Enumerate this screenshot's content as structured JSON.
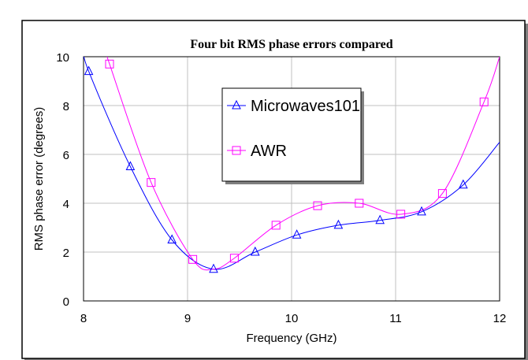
{
  "chart_data": {
    "type": "line",
    "title": "Four bit RMS phase errors compared",
    "xlabel": "Frequency (GHz)",
    "ylabel": "RMS phase error (degrees)",
    "xlim": [
      8,
      12
    ],
    "ylim": [
      0,
      10
    ],
    "xticks": [
      "8",
      "9",
      "10",
      "11",
      "12"
    ],
    "yticks": [
      "0",
      "2",
      "4",
      "6",
      "8",
      "10"
    ],
    "grid": true,
    "legend": "center",
    "series": [
      {
        "name": "Microwaves101",
        "color": "#0000ff",
        "marker": "triangle",
        "x": [
          8.05,
          8.45,
          8.85,
          9.25,
          9.65,
          10.05,
          10.45,
          10.85,
          11.25,
          11.65
        ],
        "y": [
          9.4,
          5.5,
          2.5,
          1.3,
          2.0,
          2.7,
          3.1,
          3.3,
          3.65,
          4.75
        ],
        "curve_x": [
          8.0,
          8.05,
          8.45,
          8.85,
          9.25,
          9.65,
          10.05,
          10.45,
          10.85,
          11.25,
          11.65,
          12.0
        ],
        "curve_y": [
          10.3,
          9.4,
          5.5,
          2.5,
          1.3,
          2.0,
          2.7,
          3.1,
          3.3,
          3.65,
          4.75,
          6.5
        ]
      },
      {
        "name": "AWR",
        "color": "#ff00ff",
        "marker": "square",
        "x": [
          8.25,
          8.65,
          9.05,
          9.45,
          9.85,
          10.25,
          10.65,
          11.05,
          11.45,
          11.85
        ],
        "y": [
          9.7,
          4.85,
          1.7,
          1.75,
          3.1,
          3.9,
          4.0,
          3.55,
          4.4,
          8.15
        ],
        "curve_x": [
          8.2,
          8.25,
          8.65,
          9.05,
          9.25,
          9.45,
          9.85,
          10.25,
          10.65,
          11.05,
          11.45,
          11.85,
          12.0
        ],
        "curve_y": [
          10.4,
          9.7,
          4.85,
          1.7,
          1.3,
          1.75,
          3.1,
          3.9,
          4.0,
          3.55,
          4.4,
          8.15,
          10.0
        ]
      }
    ]
  }
}
